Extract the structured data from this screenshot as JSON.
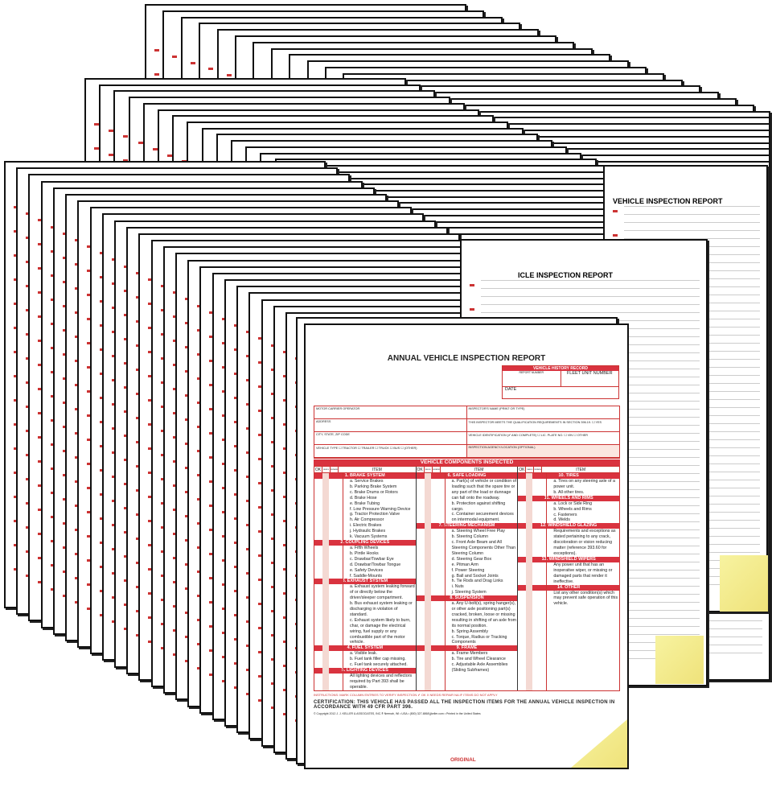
{
  "form": {
    "title": "ANNUAL VEHICLE INSPECTION REPORT",
    "history": {
      "header": "VEHICLE HISTORY RECORD",
      "report_number": "REPORT NUMBER",
      "fleet_unit": "FLEET UNIT NUMBER",
      "date": "DATE"
    },
    "fields": [
      "MOTOR CARRIER OPERATOR",
      "INSPECTOR'S NAME (PRINT OR TYPE)",
      "ADDRESS",
      "THIS INSPECTOR MEETS THE QUALIFICATION REQUIREMENTS IN SECTION 396.19.  ☐ YES",
      "CITY, STATE, ZIP CODE",
      "VEHICLE IDENTIFICATION (✔ AND COMPLETE)  ☐ LIC. PLATE NO.  ☐ VIN  ☐ OTHER",
      "VEHICLE TYPE  ☐ TRACTOR  ☐ TRAILER  ☐ TRUCK  ☐ BUS  ☐ (OTHER)",
      "INSPECTION AGENCY/LOCATION (OPTIONAL)"
    ],
    "components_header": "VEHICLE COMPONENTS INSPECTED",
    "col_headers": {
      "ok": "OK",
      "needs": "NEEDS REPAIR",
      "repaired": "REPAIRED DATE",
      "item": "ITEM"
    },
    "columns": [
      [
        {
          "title": "1. BRAKE SYSTEM",
          "items": [
            "a. Service Brakes",
            "b. Parking Brake System",
            "c. Brake Drums or Rotors",
            "d. Brake Hose",
            "e. Brake Tubing",
            "f. Low Pressure Warning Device",
            "g. Tractor Protection Valve",
            "h. Air Compressor",
            "i. Electric Brakes",
            "j. Hydraulic Brakes",
            "k. Vacuum Systems"
          ]
        },
        {
          "title": "2. COUPLING DEVICES",
          "items": [
            "a. Fifth Wheels",
            "b. Pintle Hooks",
            "c. Drawbar/Towbar Eye",
            "d. Drawbar/Towbar Tongue",
            "e. Safety Devices",
            "f. Saddle-Mounts"
          ]
        },
        {
          "title": "3. EXHAUST SYSTEM",
          "items": [
            "a. Exhaust system leaking forward of or directly below the driver/sleeper compartment.",
            "b. Bus exhaust system leaking or discharging in violation of standard.",
            "c. Exhaust system likely to burn, char, or damage the electrical wiring, fuel supply or any combustible part of the motor vehicle."
          ]
        },
        {
          "title": "4. FUEL SYSTEM",
          "items": [
            "a. Visible leak.",
            "b. Fuel tank filler cap missing.",
            "c. Fuel tank securely attached."
          ]
        },
        {
          "title": "5. LIGHTING DEVICES",
          "items": [
            "All lighting devices and reflectors required by Part 393 shall be operable."
          ]
        }
      ],
      [
        {
          "title": "6. SAFE LOADING",
          "items": [
            "a. Part(s) of vehicle or condition of loading such that the spare tire or any part of the load or dunnage can fall onto the roadway.",
            "b. Protection against shifting cargo.",
            "c. Container securement devices on intermodal equipment."
          ]
        },
        {
          "title": "7. STEERING MECHANISM",
          "items": [
            "a. Steering Wheel Free Play",
            "b. Steering Column",
            "c. Front Axle Beam and All Steering Components Other Than Steering Column",
            "d. Steering Gear Box",
            "e. Pitman Arm",
            "f. Power Steering",
            "g. Ball and Socket Joints",
            "h. Tie Rods and Drag Links",
            "i. Nuts",
            "j. Steering System"
          ]
        },
        {
          "title": "8. SUSPENSION",
          "items": [
            "a. Any U-bolt(s), spring hanger(s), or other axle positioning part(s) cracked, broken, loose or missing resulting in shifting of an axle from its normal position.",
            "b. Spring Assembly",
            "c. Torque, Radius or Tracking Components"
          ]
        },
        {
          "title": "9. FRAME",
          "items": [
            "a. Frame Members",
            "b. Tire and Wheel Clearance",
            "c. Adjustable Axle Assemblies (Sliding Subframes)"
          ]
        }
      ],
      [
        {
          "title": "10. TIRES",
          "items": [
            "a. Tires on any steering axle of a power unit.",
            "b. All other tires."
          ]
        },
        {
          "title": "11. WHEELS AND RIMS",
          "items": [
            "a. Lock or Side Ring",
            "b. Wheels and Rims",
            "c. Fasteners",
            "d. Welds"
          ]
        },
        {
          "title": "12. WINDSHIELD GLAZING",
          "items": [
            "Requirements and exceptions as stated pertaining to any crack, discoloration or vision reducing matter (reference 393.60 for exceptions)."
          ]
        },
        {
          "title": "13. WINDSHIELD WIPERS",
          "items": [
            "Any power unit that has an inoperative wiper, or missing or damaged parts that render it ineffective."
          ]
        },
        {
          "title": "14. OTHER",
          "items": [
            "List any other condition(s) which may prevent safe operation of this vehicle."
          ]
        }
      ]
    ],
    "instructions": "INSTRUCTIONS: MARK COLUMN ENTRIES TO VERIFY INSPECTION   ✔ OK   X NEEDS REPAIR   NA IF ITEMS DO NOT APPLY",
    "certification": "CERTIFICATION: THIS VEHICLE HAS PASSED ALL THE INSPECTION ITEMS FOR THE ANNUAL VEHICLE INSPECTION IN ACCORDANCE WITH 49 CFR PART 396.",
    "copyright": "© Copyright 2012 J. J. KELLER & ASSOCIATES, INC.® Neenah, WI • USA • (800) 327-6868 jjkeller.com • Printed in the United States",
    "copy_label": "ORIGINAL"
  },
  "behind_titles": [
    "VEHICLE INSPECTION REPORT",
    "ICLE INSPECTION REPORT"
  ],
  "colors": {
    "accent": "#d9333f",
    "carbon_yellow": "#f2ea8c"
  }
}
